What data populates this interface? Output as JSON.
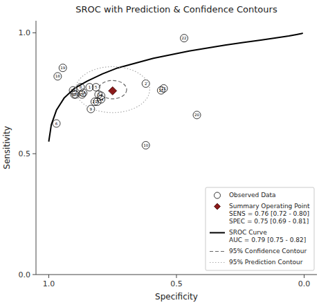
{
  "chart_data": {
    "type": "sroc",
    "title": "SROC with Prediction & Confidence Contours",
    "x_label": "Specificity",
    "y_label": "Sensitivity",
    "xlim": [
      1.05,
      -0.05
    ],
    "ylim": [
      0.0,
      1.05
    ],
    "xticks": [
      {
        "value": 1.0,
        "label": "1.0"
      },
      {
        "value": 0.5,
        "label": "0.5"
      },
      {
        "value": 0.0,
        "label": "0.0"
      }
    ],
    "yticks": [
      {
        "value": 0.0,
        "label": "0.0"
      },
      {
        "value": 0.5,
        "label": "0.5"
      },
      {
        "value": 1.0,
        "label": "1.0"
      }
    ],
    "legend": "lower right",
    "series": [
      {
        "name": "Observed Data",
        "type": "scatter",
        "marker": "circle",
        "color": "#000000",
        "x": [
          0.84,
          0.62,
          0.805,
          0.795,
          0.815,
          0.97,
          0.81,
          0.875,
          0.835,
          0.62,
          0.55,
          0.795,
          0.56,
          0.87,
          0.9,
          0.965,
          0.945,
          0.82,
          0.42,
          0.47,
          0.905,
          0.865,
          0.895
        ],
        "values": [
          0.775,
          0.79,
          0.745,
          0.74,
          0.775,
          0.625,
          0.715,
          0.775,
          0.685,
          0.535,
          0.77,
          0.725,
          0.762,
          0.745,
          0.745,
          0.82,
          0.855,
          0.715,
          0.66,
          0.978,
          0.762,
          0.752,
          0.745
        ],
        "labels": [
          "1",
          "2",
          "3",
          "4",
          "5",
          "6",
          "7",
          "8",
          "9",
          "10",
          "11",
          "14",
          "15",
          "16",
          "17",
          "18",
          "19",
          "21",
          "20",
          "22",
          "23",
          "24",
          "25"
        ]
      },
      {
        "name": "Summary Operating Point\nSENS = 0.76 [0.72 - 0.80]\nSPEC = 0.75 [0.69 - 0.81]",
        "type": "scatter",
        "marker": "diamond",
        "color": "#8B1A1A",
        "x": [
          0.75
        ],
        "values": [
          0.76
        ]
      },
      {
        "name": "SROC Curve\nAUC = 0.79 [0.75 - 0.82]",
        "type": "line",
        "line_style": "solid",
        "color": "#000000",
        "x": [
          1.0,
          0.99,
          0.97,
          0.94,
          0.9,
          0.85,
          0.79,
          0.73,
          0.66,
          0.59,
          0.52,
          0.45,
          0.38,
          0.31,
          0.24,
          0.17,
          0.11,
          0.06,
          0.03,
          0.01,
          0.005
        ],
        "values": [
          0.55,
          0.62,
          0.68,
          0.73,
          0.77,
          0.8,
          0.83,
          0.855,
          0.875,
          0.895,
          0.91,
          0.925,
          0.937,
          0.949,
          0.96,
          0.97,
          0.979,
          0.987,
          0.993,
          0.997,
          0.999
        ]
      },
      {
        "name": "95% Confidence Contour",
        "type": "ellipse",
        "line_style": "dashed",
        "color": "#666666",
        "cx": 0.75,
        "cy": 0.765,
        "rx": 0.055,
        "ry": 0.038,
        "angle": 0
      },
      {
        "name": "95% Prediction Contour",
        "type": "ellipse",
        "line_style": "dotted",
        "color": "#aaaaaa",
        "cx": 0.75,
        "cy": 0.765,
        "rx": 0.145,
        "ry": 0.095,
        "angle": 0
      }
    ]
  }
}
